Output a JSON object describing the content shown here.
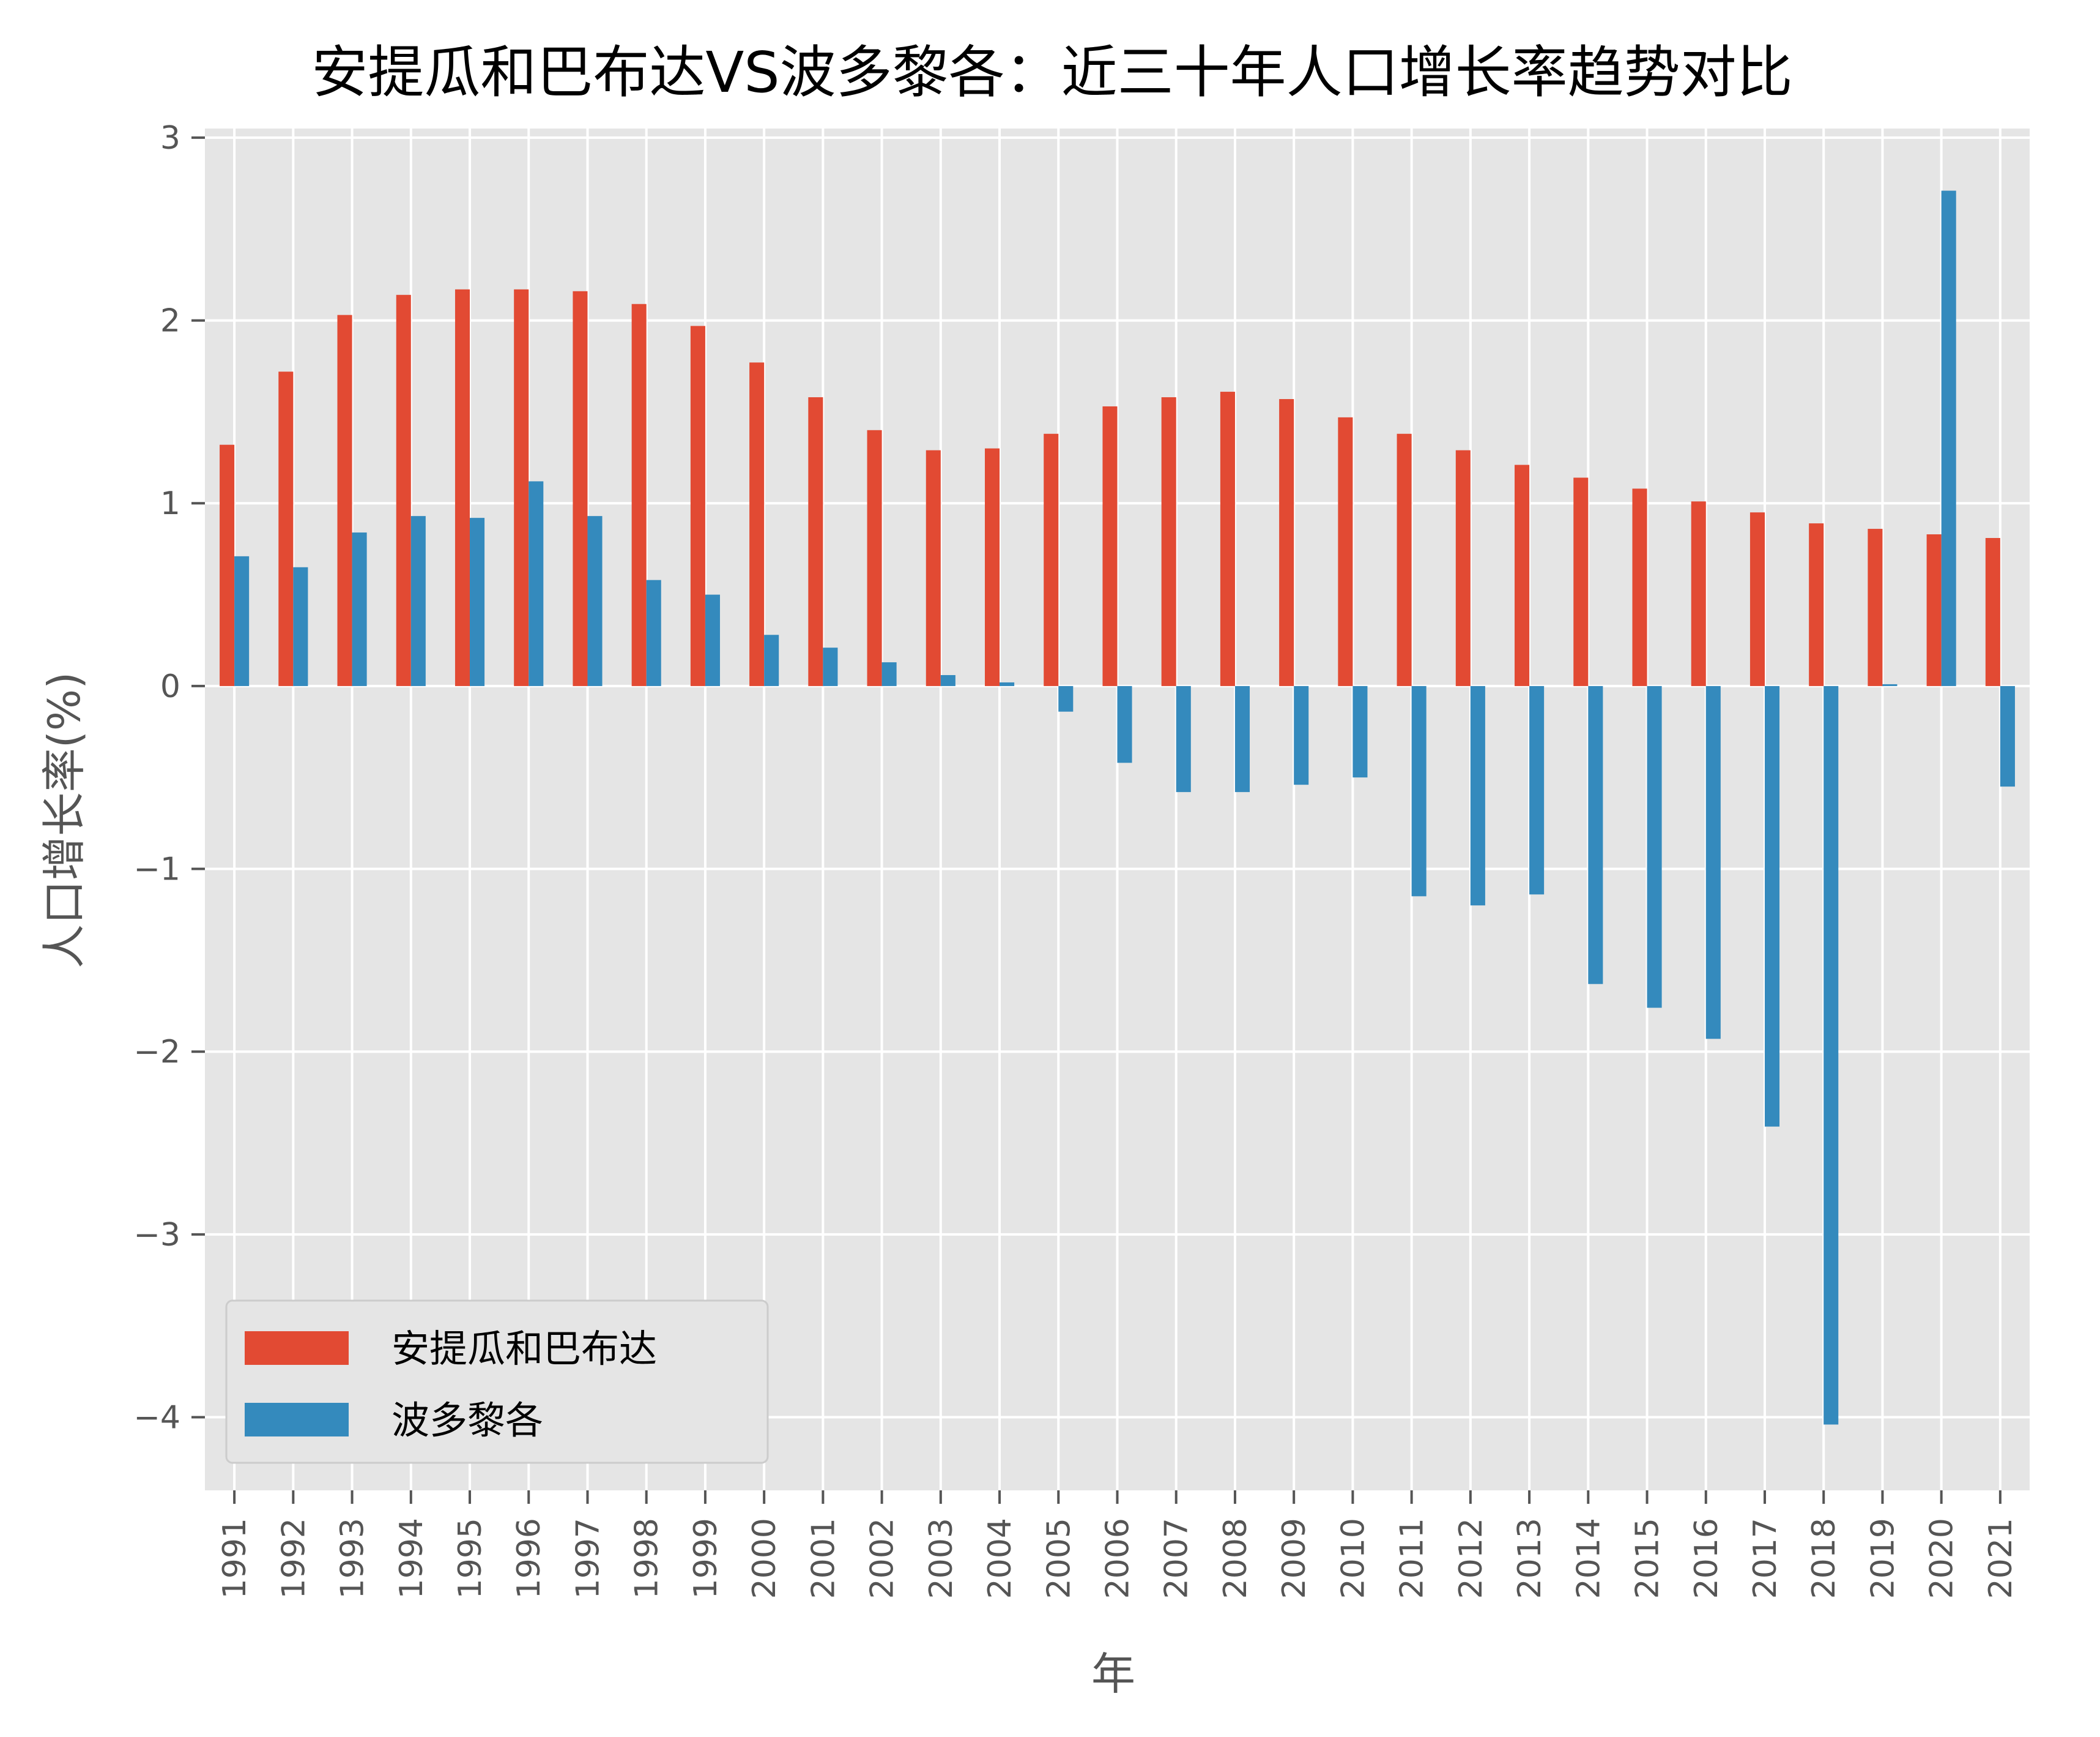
{
  "chart_data": {
    "type": "bar",
    "title": "安提瓜和巴布达VS波多黎各：近三十年人口增长率趋势对比",
    "xlabel": "年",
    "ylabel": "人口增长率(%)",
    "ylim": [
      -4.4,
      3.05
    ],
    "yticks": [
      {
        "value": 3,
        "label": "3"
      },
      {
        "value": 2,
        "label": "2"
      },
      {
        "value": 1,
        "label": "1"
      },
      {
        "value": 0,
        "label": "0"
      },
      {
        "value": -1,
        "label": "−1"
      },
      {
        "value": -2,
        "label": "−2"
      },
      {
        "value": -3,
        "label": "−3"
      },
      {
        "value": -4,
        "label": "−4"
      }
    ],
    "grid": true,
    "legend_position": "bottom-left",
    "categories": [
      "1991",
      "1992",
      "1993",
      "1994",
      "1995",
      "1996",
      "1997",
      "1998",
      "1999",
      "2000",
      "2001",
      "2002",
      "2003",
      "2004",
      "2005",
      "2006",
      "2007",
      "2008",
      "2009",
      "2010",
      "2011",
      "2012",
      "2013",
      "2014",
      "2015",
      "2016",
      "2017",
      "2018",
      "2019",
      "2020",
      "2021"
    ],
    "series": [
      {
        "name": "安提瓜和巴布达",
        "color": "#E24A33",
        "values": [
          1.32,
          1.72,
          2.03,
          2.14,
          2.17,
          2.17,
          2.16,
          2.09,
          1.97,
          1.77,
          1.58,
          1.4,
          1.29,
          1.3,
          1.38,
          1.53,
          1.58,
          1.61,
          1.57,
          1.47,
          1.38,
          1.29,
          1.21,
          1.14,
          1.08,
          1.01,
          0.95,
          0.89,
          0.86,
          0.83,
          0.81
        ]
      },
      {
        "name": "波多黎各",
        "color": "#348ABD",
        "values": [
          0.71,
          0.65,
          0.84,
          0.93,
          0.92,
          1.12,
          0.93,
          0.58,
          0.5,
          0.28,
          0.21,
          0.13,
          0.06,
          0.02,
          -0.14,
          -0.42,
          -0.58,
          -0.58,
          -0.54,
          -0.5,
          -1.15,
          -1.2,
          -1.14,
          -1.63,
          -1.76,
          -1.93,
          -2.41,
          -4.04,
          0.01,
          2.71,
          -0.55
        ]
      }
    ]
  }
}
